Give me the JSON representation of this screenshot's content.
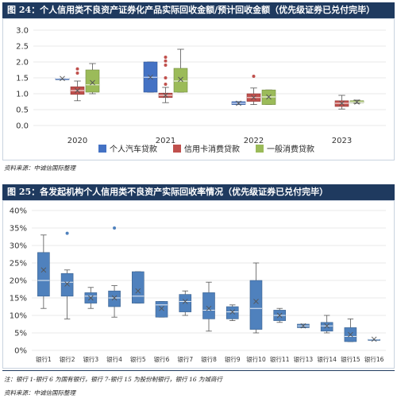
{
  "figure24": {
    "title": "图 24：个人信用类不良资产证券化产品实际回收金额/预计回收金额（优先级证券已兑付完毕）",
    "source": "资料来源：中诚信国际整理"
  },
  "figure25": {
    "title": "图 25：各发起机构个人信用类不良资产实际回收率情况（优先级证券已兑付完毕）",
    "note": "注：银行 1-银行 6 为国有银行，银行 7-银行 15 为股份制银行，银行 16 为城商行",
    "source": "资料来源：中诚信国际整理"
  },
  "colors": {
    "auto": "#4472c4",
    "card": "#c0504d",
    "general": "#9bbb59",
    "bank": "#4f81bd",
    "banner": "#1f3a5f"
  },
  "chart_data": [
    {
      "type": "box",
      "title": "",
      "categories": [
        "2020",
        "2021",
        "2022",
        "2023"
      ],
      "ylim": [
        0,
        3.0
      ],
      "yticks": [
        "0.0",
        "0.5",
        "1.0",
        "1.5",
        "2.0",
        "2.5",
        "3.0"
      ],
      "legend_position": "bottom",
      "series": [
        {
          "name": "个人汽车贷款",
          "color": "#4472c4",
          "boxes": [
            {
              "category": "2020",
              "min": 1.48,
              "q1": 1.48,
              "median": 1.48,
              "q3": 1.48,
              "max": 1.48,
              "mean": 1.48,
              "outliers": []
            },
            {
              "category": "2021",
              "min": 1.05,
              "q1": 1.05,
              "median": 1.52,
              "q3": 2.0,
              "max": 2.0,
              "mean": 1.52,
              "outliers": []
            },
            {
              "category": "2022",
              "min": 0.66,
              "q1": 0.66,
              "median": 0.7,
              "q3": 0.75,
              "max": 0.75,
              "mean": 0.7,
              "outliers": []
            },
            null
          ]
        },
        {
          "name": "信用卡消费贷款",
          "color": "#c0504d",
          "boxes": [
            {
              "category": "2020",
              "min": 0.78,
              "q1": 0.98,
              "median": 1.1,
              "q3": 1.22,
              "max": 1.4,
              "mean": 1.1,
              "outliers": [
                1.65,
                1.78
              ]
            },
            {
              "category": "2021",
              "min": 0.72,
              "q1": 0.88,
              "median": 0.95,
              "q3": 1.02,
              "max": 1.2,
              "mean": 0.95,
              "outliers": [
                1.3,
                1.5,
                1.9,
                2.03,
                2.15
              ]
            },
            {
              "category": "2022",
              "min": 0.66,
              "q1": 0.76,
              "median": 0.88,
              "q3": 1.0,
              "max": 1.18,
              "mean": 0.88,
              "outliers": [
                1.55
              ]
            },
            {
              "category": "2023",
              "min": 0.52,
              "q1": 0.6,
              "median": 0.7,
              "q3": 0.78,
              "max": 0.95,
              "mean": 0.7,
              "outliers": []
            }
          ]
        },
        {
          "name": "一般消费贷款",
          "color": "#9bbb59",
          "boxes": [
            {
              "category": "2020",
              "min": 1.0,
              "q1": 1.05,
              "median": 1.28,
              "q3": 1.75,
              "max": 1.95,
              "mean": 1.35,
              "outliers": []
            },
            {
              "category": "2021",
              "min": 1.05,
              "q1": 1.05,
              "median": 1.4,
              "q3": 1.8,
              "max": 2.4,
              "mean": 1.45,
              "outliers": []
            },
            {
              "category": "2022",
              "min": 0.66,
              "q1": 0.66,
              "median": 0.9,
              "q3": 1.12,
              "max": 1.12,
              "mean": 0.9,
              "outliers": []
            },
            {
              "category": "2023",
              "min": 0.7,
              "q1": 0.72,
              "median": 0.74,
              "q3": 0.78,
              "max": 0.8,
              "mean": 0.74,
              "outliers": []
            }
          ]
        }
      ]
    },
    {
      "type": "box",
      "title": "",
      "categories": [
        "银行1",
        "银行2",
        "银行3",
        "银行4",
        "银行5",
        "银行6",
        "银行7",
        "银行8",
        "银行9",
        "银行10",
        "银行11",
        "银行13",
        "银行14",
        "银行15",
        "银行16"
      ],
      "ylim": [
        0,
        40
      ],
      "yticks": [
        "0%",
        "5%",
        "10%",
        "15%",
        "20%",
        "25%",
        "30%",
        "35%",
        "40%"
      ],
      "series": [
        {
          "name": "",
          "color": "#4f81bd",
          "boxes": [
            {
              "min": 12,
              "q1": 15.5,
              "median": 20,
              "q3": 28,
              "max": 33,
              "mean": 23,
              "outliers": []
            },
            {
              "min": 9,
              "q1": 15.5,
              "median": 19.5,
              "q3": 22,
              "max": 23,
              "mean": 19,
              "outliers": [
                33.5
              ]
            },
            {
              "min": 12,
              "q1": 13.5,
              "median": 15.5,
              "q3": 16.5,
              "max": 18,
              "mean": 15,
              "outliers": []
            },
            {
              "min": 9.5,
              "q1": 12.5,
              "median": 15,
              "q3": 17,
              "max": 18.5,
              "mean": 15,
              "outliers": [
                35
              ]
            },
            {
              "min": 13.5,
              "q1": 13.5,
              "median": 15.5,
              "q3": 22.5,
              "max": 22.5,
              "mean": 17,
              "outliers": []
            },
            {
              "min": 9.5,
              "q1": 9.5,
              "median": 13,
              "q3": 14,
              "max": 14,
              "mean": 12,
              "outliers": []
            },
            {
              "min": 10,
              "q1": 11,
              "median": 14,
              "q3": 16,
              "max": 17,
              "mean": 14,
              "outliers": []
            },
            {
              "min": 5.5,
              "q1": 9,
              "median": 11.5,
              "q3": 16.5,
              "max": 19.5,
              "mean": 12,
              "outliers": []
            },
            {
              "min": 8.5,
              "q1": 9,
              "median": 11,
              "q3": 12.5,
              "max": 13,
              "mean": 11,
              "outliers": []
            },
            {
              "min": 5,
              "q1": 6,
              "median": 12,
              "q3": 20,
              "max": 25,
              "mean": 14,
              "outliers": []
            },
            {
              "min": 8,
              "q1": 8.5,
              "median": 10,
              "q3": 11.5,
              "max": 12,
              "mean": 10,
              "outliers": []
            },
            {
              "min": 6.5,
              "q1": 6.5,
              "median": 7,
              "q3": 7.5,
              "max": 7.5,
              "mean": 7,
              "outliers": []
            },
            {
              "min": 5,
              "q1": 5.5,
              "median": 7,
              "q3": 8,
              "max": 10,
              "mean": 7,
              "outliers": []
            },
            {
              "min": 2.5,
              "q1": 2.5,
              "median": 4,
              "q3": 6.5,
              "max": 9,
              "mean": 4.5,
              "outliers": []
            },
            {
              "min": 3.2,
              "q1": 3.2,
              "median": 3.2,
              "q3": 3.2,
              "max": 3.2,
              "mean": 3.2,
              "outliers": []
            }
          ]
        }
      ]
    }
  ]
}
